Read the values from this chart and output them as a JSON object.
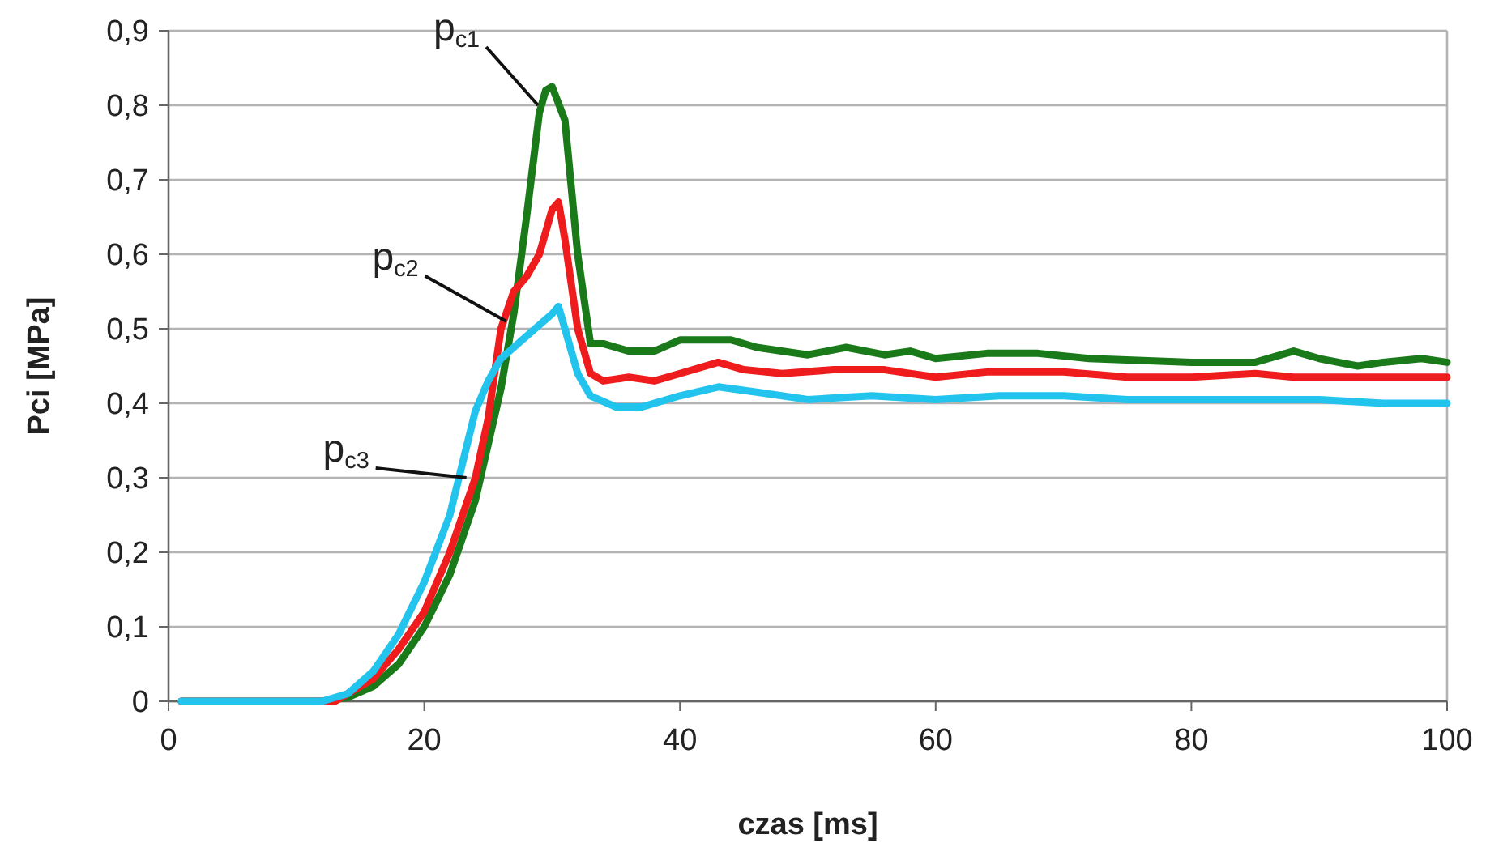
{
  "chart_data": {
    "type": "line",
    "xlabel": "czas [ms]",
    "ylabel": "Pci [MPa]",
    "xlim": [
      0,
      100
    ],
    "ylim": [
      0,
      0.9
    ],
    "xticks": [
      0,
      20,
      40,
      60,
      80,
      100
    ],
    "yticks": [
      {
        "value": 0,
        "label": "0"
      },
      {
        "value": 0.1,
        "label": "0,1"
      },
      {
        "value": 0.2,
        "label": "0,2"
      },
      {
        "value": 0.3,
        "label": "0,3"
      },
      {
        "value": 0.4,
        "label": "0,4"
      },
      {
        "value": 0.5,
        "label": "0,5"
      },
      {
        "value": 0.6,
        "label": "0,6"
      },
      {
        "value": 0.7,
        "label": "0,7"
      },
      {
        "value": 0.8,
        "label": "0,8"
      },
      {
        "value": 0.9,
        "label": "0,9"
      }
    ],
    "grid": "y",
    "marker": "none",
    "line_style": "solid",
    "series": [
      {
        "color": "#1a7a1a",
        "x": [
          1,
          12,
          14,
          16,
          18,
          20,
          22,
          24,
          26,
          27,
          28,
          29,
          29.5,
          30,
          31,
          32,
          33,
          34,
          36,
          38,
          40,
          44,
          46,
          50,
          53,
          56,
          58,
          60,
          64,
          68,
          72,
          80,
          85,
          88,
          90,
          93,
          95,
          98,
          100
        ],
        "values": [
          0,
          0,
          0.005,
          0.02,
          0.05,
          0.1,
          0.17,
          0.27,
          0.42,
          0.52,
          0.65,
          0.79,
          0.82,
          0.825,
          0.78,
          0.6,
          0.48,
          0.48,
          0.47,
          0.47,
          0.485,
          0.485,
          0.475,
          0.465,
          0.475,
          0.465,
          0.47,
          0.46,
          0.467,
          0.467,
          0.46,
          0.455,
          0.455,
          0.47,
          0.46,
          0.45,
          0.455,
          0.46,
          0.455
        ]
      },
      {
        "color": "#ee1c1c",
        "x": [
          1,
          13,
          16,
          18,
          20,
          22,
          24,
          25,
          26,
          27,
          28,
          29,
          30,
          30.5,
          31,
          32,
          33,
          34,
          36,
          38,
          40,
          43,
          45,
          48,
          52,
          56,
          60,
          64,
          70,
          75,
          80,
          85,
          88,
          95,
          100
        ],
        "values": [
          0,
          0,
          0.03,
          0.07,
          0.12,
          0.2,
          0.3,
          0.38,
          0.5,
          0.55,
          0.57,
          0.6,
          0.66,
          0.67,
          0.62,
          0.5,
          0.44,
          0.43,
          0.435,
          0.43,
          0.44,
          0.455,
          0.445,
          0.44,
          0.445,
          0.445,
          0.435,
          0.442,
          0.442,
          0.435,
          0.435,
          0.44,
          0.435,
          0.435,
          0.435
        ]
      },
      {
        "color": "#22c4ee",
        "x": [
          1,
          12,
          14,
          16,
          18,
          20,
          22,
          23,
          24,
          25,
          26,
          28,
          30,
          30.5,
          31,
          32,
          33,
          35,
          37,
          40,
          43,
          46,
          50,
          55,
          60,
          65,
          70,
          75,
          80,
          90,
          95,
          100
        ],
        "values": [
          0,
          0,
          0.01,
          0.04,
          0.09,
          0.16,
          0.25,
          0.32,
          0.39,
          0.43,
          0.46,
          0.49,
          0.52,
          0.53,
          0.5,
          0.44,
          0.41,
          0.395,
          0.395,
          0.41,
          0.422,
          0.415,
          0.405,
          0.41,
          0.405,
          0.41,
          0.41,
          0.405,
          0.405,
          0.405,
          0.4,
          0.4
        ]
      }
    ],
    "annotations": [
      {
        "text": "p$_{c1}$",
        "x": 28.9,
        "y": 0.8
      },
      {
        "text": "p$_{c2}$",
        "x": 26.4,
        "y": 0.51
      },
      {
        "text": "p$_{c3}$",
        "x": 23.3,
        "y": 0.3
      }
    ]
  }
}
